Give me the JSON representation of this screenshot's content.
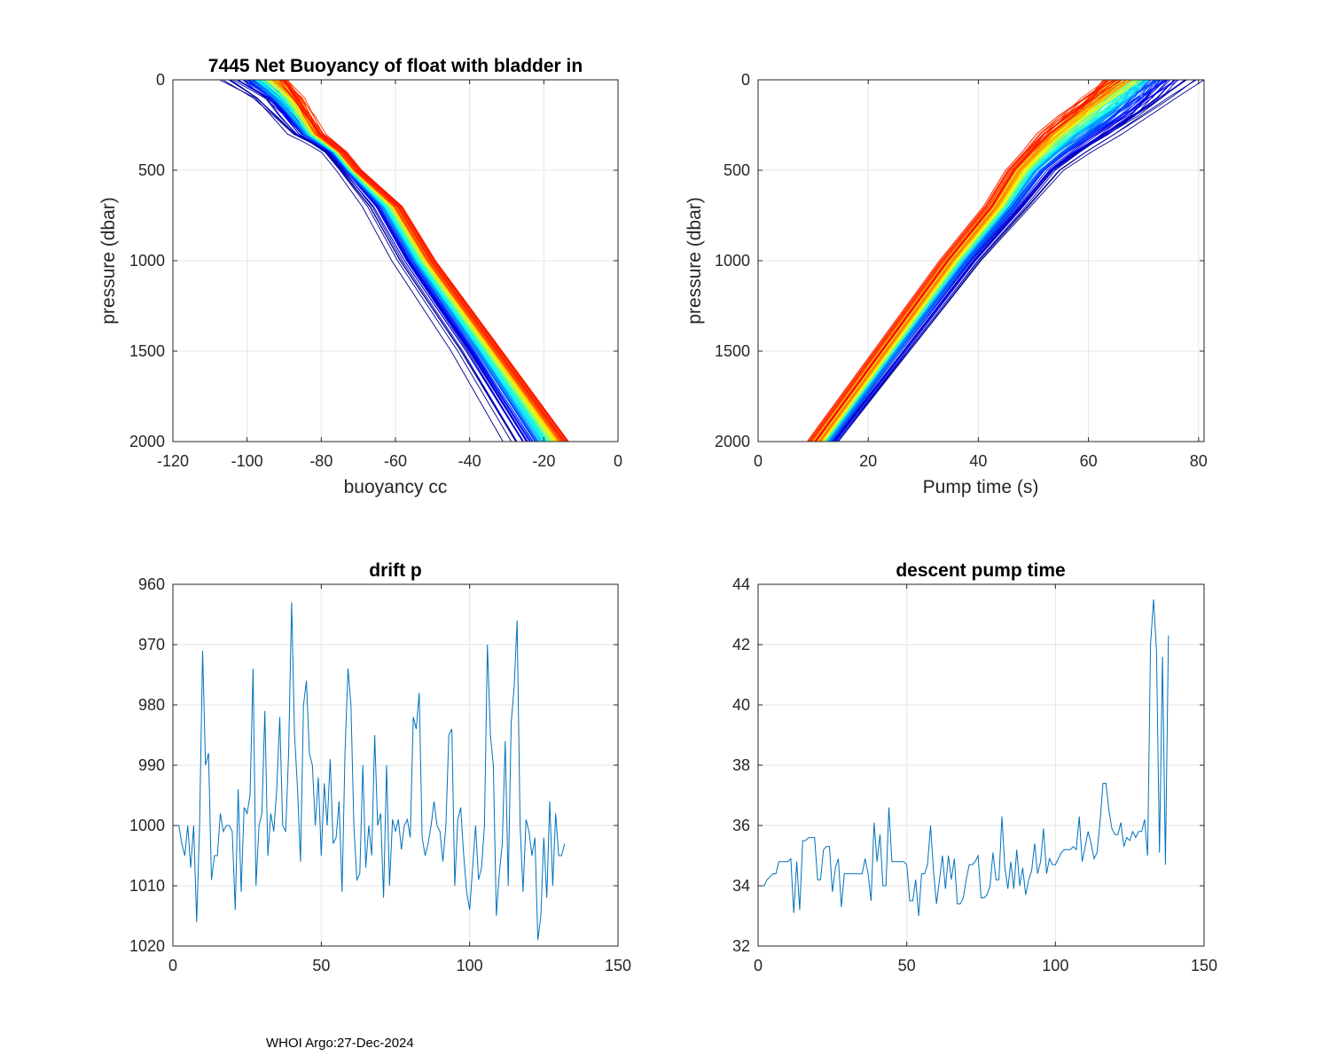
{
  "footer": "WHOI Argo:27-Dec-2024",
  "colors": {
    "line": "#0072bd",
    "grid": "#e5e5e5",
    "axis": "#262626",
    "jet": [
      "#00008f",
      "#0000ff",
      "#0080ff",
      "#00ffff",
      "#80ff80",
      "#ffff00",
      "#ff8000",
      "#ff0000"
    ]
  },
  "chart_data": [
    {
      "id": "buoyancy",
      "type": "line",
      "title": "7445 Net Buoyancy of float with bladder in",
      "xlabel": "buoyancy cc",
      "ylabel": "pressure (dbar)",
      "xlim": [
        -120,
        0
      ],
      "ylim": [
        0,
        2000
      ],
      "y_reversed": true,
      "xticks": [
        -120,
        -100,
        -80,
        -60,
        -40,
        -20,
        0
      ],
      "yticks": [
        0,
        500,
        1000,
        1500,
        2000
      ],
      "n_profiles": 133,
      "colormap": "jet",
      "description_values": {
        "pressure": [
          0,
          100,
          200,
          300,
          350,
          400,
          500,
          700,
          1000,
          1500,
          2000
        ],
        "earliest_profile_buoyancy": [
          -107,
          -98,
          -93,
          -88,
          -83,
          -79,
          -75,
          -68,
          -60,
          -44,
          -30
        ],
        "latest_profile_buoyancy": [
          -90,
          -86,
          -83,
          -80,
          -77,
          -74,
          -70,
          -59,
          -50,
          -32,
          -14
        ]
      }
    },
    {
      "id": "pumptime",
      "type": "line",
      "title": "",
      "xlabel": "Pump time (s)",
      "ylabel": "pressure (dbar)",
      "xlim": [
        0,
        81
      ],
      "ylim": [
        0,
        2000
      ],
      "y_reversed": true,
      "xticks": [
        0,
        20,
        40,
        60,
        80
      ],
      "yticks": [
        0,
        500,
        1000,
        1500,
        2000
      ],
      "n_profiles": 133,
      "colormap": "jet",
      "description_values": {
        "pressure": [
          0,
          100,
          200,
          300,
          400,
          500,
          700,
          1000,
          1500,
          2000
        ],
        "earliest_profile_pumptime": [
          80,
          76,
          72,
          67,
          61,
          56,
          50,
          41,
          28,
          15
        ],
        "latest_profile_pumptime": [
          64,
          60,
          56,
          52,
          49,
          46,
          42,
          34,
          22,
          10
        ]
      }
    },
    {
      "id": "driftp",
      "type": "line",
      "title": "drift p",
      "xlabel": "",
      "ylabel": "",
      "xlim": [
        0,
        150
      ],
      "ylim": [
        960,
        1020
      ],
      "y_reversed": true,
      "xticks": [
        0,
        50,
        100,
        150
      ],
      "yticks": [
        960,
        970,
        980,
        990,
        1000,
        1010,
        1020
      ],
      "x_start": 1,
      "values": [
        1000,
        1000,
        1003,
        1005,
        1000,
        1007,
        1000,
        1016,
        1000,
        971,
        990,
        988,
        1009,
        1005,
        1005,
        998,
        1001,
        1000,
        1000,
        1001,
        1014,
        994,
        1011,
        997,
        998,
        995,
        974,
        1010,
        1000,
        998,
        981,
        1005,
        998,
        1001,
        994,
        982,
        1000,
        1001,
        988,
        963,
        985,
        994,
        1006,
        980,
        976,
        988,
        990,
        1000,
        992,
        1005,
        993,
        1000,
        989,
        1003,
        1002,
        996,
        1011,
        988,
        974,
        980,
        1000,
        1009,
        1008,
        990,
        1007,
        1000,
        1005,
        985,
        1000,
        998,
        1012,
        990,
        1010,
        999,
        1001,
        999,
        1004,
        1000,
        999,
        1002,
        982,
        984,
        978,
        1002,
        1005,
        1003,
        1000,
        996,
        1000,
        1001,
        1006,
        1000,
        985,
        984,
        1010,
        999,
        997,
        1005,
        1011,
        1014,
        1007,
        1000,
        1009,
        1007,
        1000,
        970,
        985,
        990,
        1015,
        1008,
        1003,
        986,
        1010,
        983,
        977,
        966,
        1000,
        1011,
        999,
        1001,
        1005,
        1002,
        1019,
        1015,
        1002,
        1012,
        996,
        1010,
        998,
        1005,
        1005,
        1003
      ]
    },
    {
      "id": "pumptime_desc",
      "type": "line",
      "title": "descent pump time",
      "xlabel": "",
      "ylabel": "",
      "xlim": [
        0,
        150
      ],
      "ylim": [
        32,
        44
      ],
      "y_reversed": false,
      "xticks": [
        0,
        50,
        100,
        150
      ],
      "yticks": [
        32,
        34,
        36,
        38,
        40,
        42,
        44
      ],
      "x_start": 1,
      "values": [
        34.0,
        34.0,
        34.2,
        34.3,
        34.4,
        34.4,
        34.8,
        34.8,
        34.8,
        34.8,
        34.9,
        33.1,
        34.8,
        33.2,
        35.5,
        35.5,
        35.6,
        35.6,
        35.6,
        34.2,
        34.2,
        35.2,
        35.3,
        35.3,
        33.8,
        34.6,
        34.9,
        33.3,
        34.4,
        34.4,
        34.4,
        34.4,
        34.4,
        34.4,
        34.4,
        34.9,
        34.4,
        33.5,
        36.1,
        34.8,
        35.7,
        34.0,
        34.0,
        36.6,
        34.8,
        34.8,
        34.8,
        34.8,
        34.8,
        34.7,
        33.5,
        33.5,
        34.2,
        33.0,
        34.4,
        34.4,
        34.7,
        36.0,
        34.5,
        33.4,
        34.2,
        35.0,
        33.9,
        35.0,
        34.2,
        34.9,
        33.4,
        33.4,
        33.6,
        34.2,
        34.7,
        34.7,
        34.8,
        35.0,
        33.6,
        33.6,
        33.7,
        34.0,
        35.1,
        34.2,
        34.2,
        36.3,
        34.6,
        33.9,
        34.8,
        33.9,
        35.2,
        34.0,
        34.6,
        33.7,
        34.2,
        34.5,
        35.4,
        34.4,
        34.8,
        35.9,
        34.4,
        34.9,
        34.7,
        34.7,
        34.9,
        35.1,
        35.2,
        35.2,
        35.2,
        35.3,
        35.2,
        36.3,
        34.8,
        35.3,
        35.8,
        35.4,
        34.9,
        35.1,
        36.1,
        37.4,
        37.4,
        36.5,
        35.9,
        35.7,
        35.7,
        36.1,
        35.3,
        35.6,
        35.5,
        35.8,
        35.6,
        35.8,
        35.8,
        36.2,
        35.0,
        42.0,
        43.5,
        41.8,
        35.1,
        41.6,
        34.7,
        42.3
      ]
    }
  ]
}
